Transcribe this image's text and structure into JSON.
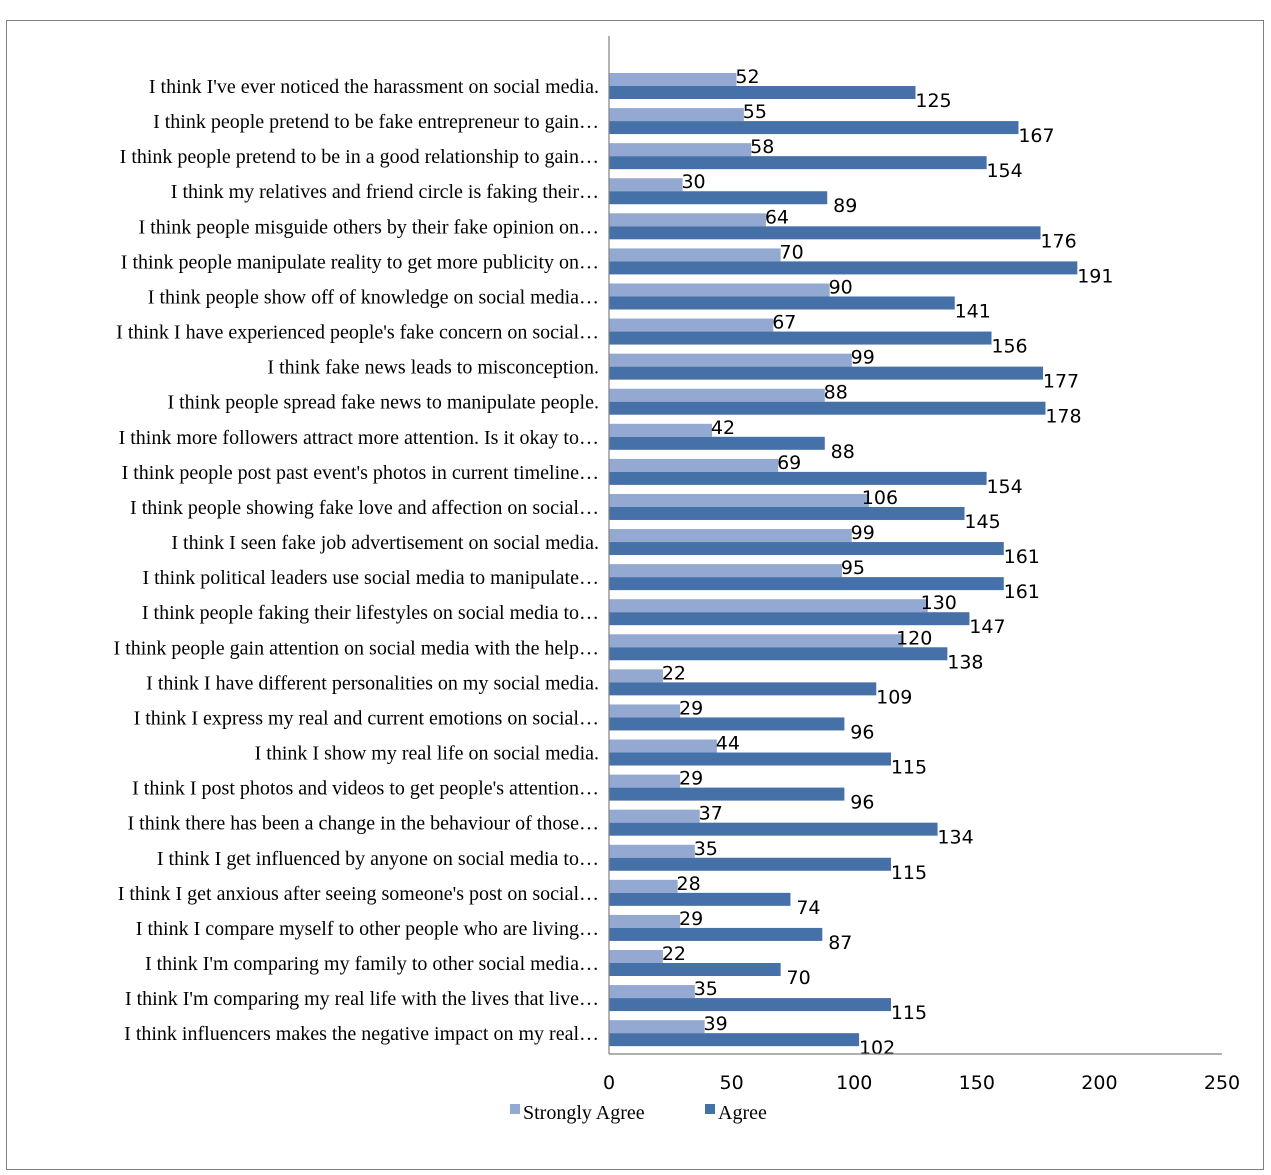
{
  "caption": "",
  "chart_data": {
    "type": "bar",
    "orientation": "horizontal",
    "title": "",
    "xlabel": "",
    "ylabel": "",
    "xlim": [
      0,
      250
    ],
    "x_ticks": [
      0,
      50,
      100,
      150,
      200,
      250
    ],
    "grid": false,
    "legend_position": "bottom",
    "categories": [
      "I think I've ever noticed the harassment on social media.",
      "I think people pretend to be fake entrepreneur to gain…",
      "I think people pretend to be in a good relationship to gain…",
      "I think my relatives and friend circle is faking their…",
      "I think people misguide others by their fake opinion on…",
      "I think people manipulate reality to get more publicity on…",
      "I think people show off of knowledge on social media…",
      "I think I have experienced people's fake concern on social…",
      "I think fake news leads to misconception.",
      "I think people spread fake news to manipulate people.",
      "I think more followers attract more attention. Is it okay to…",
      "I think people post past event's photos in current timeline…",
      "I think people showing fake love and affection on social…",
      "I think I seen fake job advertisement on social media.",
      "I think political leaders use social media to manipulate…",
      "I think people faking their lifestyles on social media to…",
      "I think people gain attention on social media with the help…",
      "I think I have different personalities on my social media.",
      "I think I express my real and current emotions on social…",
      "I think I show my real life on social media.",
      "I think I post photos and videos to get people's attention…",
      "I think there has been a change in the behaviour of those…",
      "I think I get influenced by anyone on social media to…",
      "I think I get anxious after seeing someone's post on social…",
      "I think I compare myself to other people who are living…",
      "I think I'm comparing my family to other social media…",
      "I think I'm comparing my real life with the lives that live…",
      "I think influencers makes the negative impact on my real…"
    ],
    "series": [
      {
        "name": "Strongly Agree",
        "color": "#94a9d2",
        "values": [
          52,
          55,
          58,
          30,
          64,
          70,
          90,
          67,
          99,
          88,
          42,
          69,
          106,
          99,
          95,
          130,
          120,
          22,
          29,
          44,
          29,
          37,
          35,
          28,
          29,
          22,
          35,
          39
        ]
      },
      {
        "name": "Agree",
        "color": "#4670a8",
        "values": [
          125,
          167,
          154,
          89,
          176,
          191,
          141,
          156,
          177,
          178,
          88,
          154,
          145,
          161,
          161,
          147,
          138,
          109,
          96,
          115,
          96,
          134,
          115,
          74,
          87,
          70,
          115,
          102
        ]
      }
    ]
  }
}
